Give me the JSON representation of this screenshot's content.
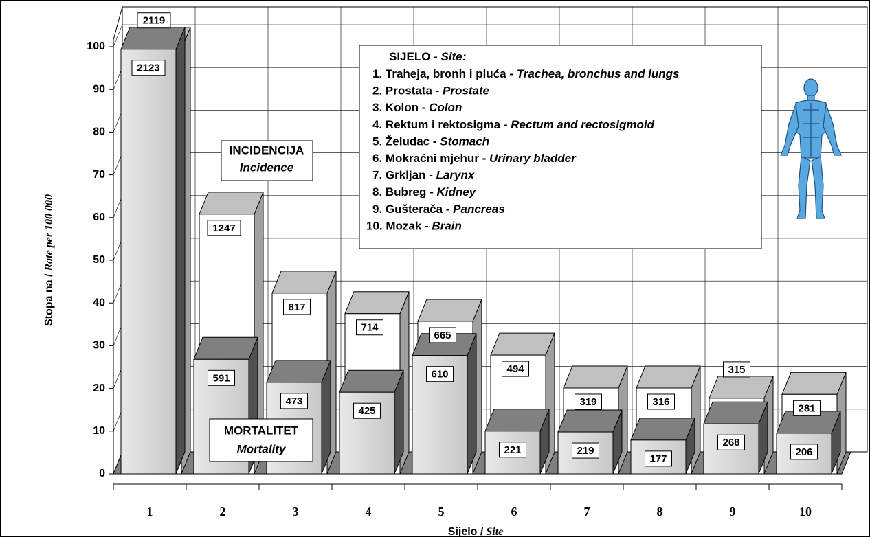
{
  "chart_data": {
    "type": "bar3d",
    "y_label": "Stopa na /",
    "y_label_em": "Rate per 100 000",
    "x_label": "Sijelo /",
    "x_label_em": "Site",
    "categories": [
      "1",
      "2",
      "3",
      "4",
      "5",
      "6",
      "7",
      "8",
      "9",
      "10"
    ],
    "series": [
      {
        "name": "INCIDENCIJA",
        "name_en": "Incidence",
        "color": "#ffffff",
        "top_color": "#c0c0c0",
        "side_color": "#a0a0a0",
        "values": [
          99.4,
          60.8,
          42.3,
          37.5,
          35.7,
          27.8,
          20.1,
          20.1,
          17.7,
          18.6
        ],
        "counts": [
          2119,
          1247,
          817,
          714,
          665,
          494,
          319,
          316,
          315,
          281
        ]
      },
      {
        "name": "MORTALITET",
        "name_en": "Mortality",
        "color": "#c8c8c8",
        "top_color": "#808080",
        "side_color": "#505050",
        "values": [
          99.4,
          26.8,
          21.4,
          19.1,
          27.7,
          10,
          9.8,
          7.9,
          11.7,
          9.5
        ],
        "counts": [
          2123,
          591,
          473,
          425,
          610,
          221,
          219,
          177,
          268,
          206
        ]
      }
    ],
    "ylim": [
      0,
      100
    ],
    "yticks": [
      0,
      10,
      20,
      30,
      40,
      50,
      60,
      70,
      80,
      90,
      100
    ],
    "grid": true,
    "legend_box": {
      "title": "SIJELO - ",
      "title_em": "Site:",
      "items": [
        {
          "hr": "1. Traheja, bronh i pluća - ",
          "en": "Trachea, bronchus and lungs"
        },
        {
          "hr": "2. Prostata - ",
          "en": "Prostate"
        },
        {
          "hr": "3. Kolon - ",
          "en": "Colon"
        },
        {
          "hr": "4. Rektum i rektosigma - ",
          "en": "Rectum and rectosigmoid"
        },
        {
          "hr": "5. Želudac - ",
          "en": "Stomach"
        },
        {
          "hr": "6. Mokraćni mjehur - ",
          "en": "Urinary bladder"
        },
        {
          "hr": "7. Grkljan - ",
          "en": "Larynx"
        },
        {
          "hr": "8. Bubreg - ",
          "en": "Kidney"
        },
        {
          "hr": "9. Gušterača - ",
          "en": "Pancreas"
        },
        {
          "hr": "10. Mozak - ",
          "en": "Brain"
        }
      ]
    }
  }
}
